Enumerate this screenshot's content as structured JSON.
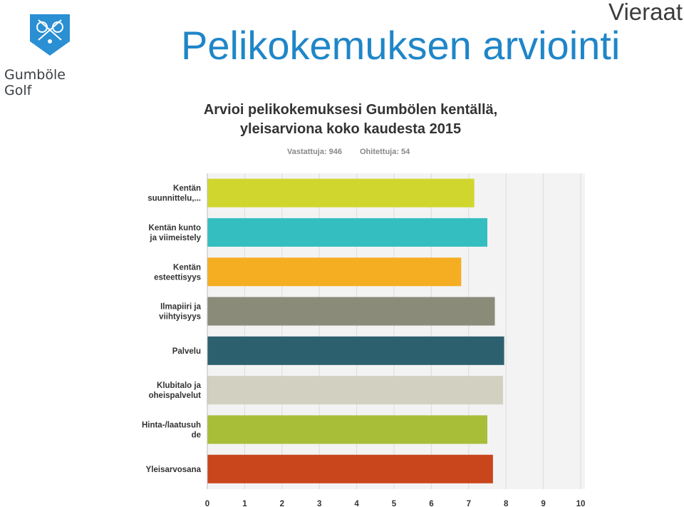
{
  "header": {
    "title": "Pelikokemuksen arviointi",
    "corner_label": "Vieraat",
    "logo_text": "Gumböle Golf"
  },
  "colors": {
    "title_blue": "#1f86c8",
    "logo_blue": "#2a8fd3"
  },
  "chart_data": {
    "type": "bar",
    "orientation": "horizontal",
    "title_lines": [
      "Arvioi pelikokemuksesi Gumbölen kentällä,",
      "yleisarviona koko kaudesta 2015"
    ],
    "answered": "Vastattuja: 946",
    "skipped": "Ohitettuja: 54",
    "categories": [
      [
        "Kentän",
        "suunnittelu,..."
      ],
      [
        "Kentän kunto",
        "ja viimeistely"
      ],
      [
        "Kentän",
        "esteettisyys"
      ],
      [
        "Ilmapiiri ja",
        "viihtyisyys"
      ],
      [
        "Palvelu"
      ],
      [
        "Klubitalo ja",
        "oheispalvelut"
      ],
      [
        "Hinta-/laatusuh",
        "de"
      ],
      [
        "Yleisarvosana"
      ]
    ],
    "values": [
      7.15,
      7.5,
      6.8,
      7.7,
      7.95,
      7.92,
      7.5,
      7.65
    ],
    "colors": [
      "#d1d62f",
      "#35bec0",
      "#f5ae22",
      "#8a8b79",
      "#2d606e",
      "#d2d0c0",
      "#a8bd38",
      "#c9451b"
    ],
    "xlim": [
      0,
      10
    ],
    "ticks": [
      "0",
      "1",
      "2",
      "3",
      "4",
      "5",
      "6",
      "7",
      "8",
      "9",
      "10"
    ],
    "grid": true
  }
}
